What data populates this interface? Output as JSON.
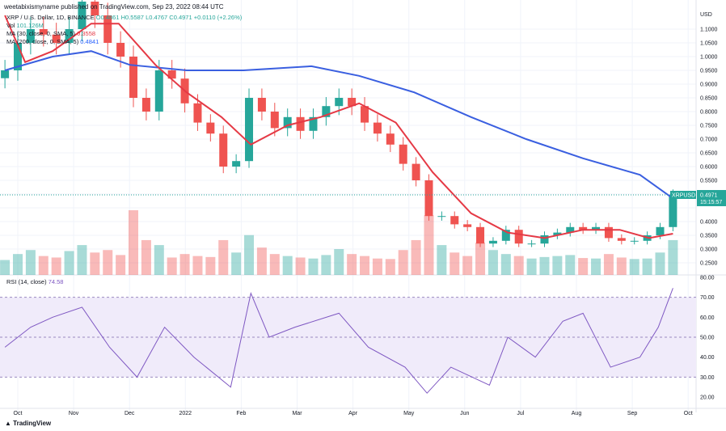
{
  "header": {
    "published": "weetabixismyname published on TradingView.com, Sep 23, 2022 08:44 UTC"
  },
  "legend": {
    "symbol": "XRP / U.S. Dollar, 1D, BINANCE",
    "o": "O0.4861",
    "h": "H0.5587",
    "l": "L0.4767",
    "c": "C0.4971",
    "change": "+0.0110 (+2.26%)",
    "vol_label": "Vol",
    "vol_value": "101.126M",
    "ma30_label": "MA (30, close, 0, SMA, 5)",
    "ma30_value": "0.3558",
    "ma200_label": "MA (200, close, 0, SMA, 5)",
    "ma200_value": "0.4841",
    "rsi_label": "RSI (14, close)",
    "rsi_value": "74.58"
  },
  "price_tag": {
    "symbol": "XRPUSD",
    "price": "0.4971",
    "countdown": "15:15:57"
  },
  "axis_currency": "USD",
  "footer": {
    "brand": "TradingView"
  },
  "colors": {
    "up": "#26a69a",
    "down": "#ef5350",
    "ma30": "#e53945",
    "ma200": "#3a5fe0",
    "rsi": "#7e57c2",
    "rsi_band": "#f0ebfa"
  },
  "chart_data": {
    "type": "candlestick",
    "interval_shown": "weekly approximation of daily chart",
    "x_ticks": [
      "Oct",
      "Nov",
      "Dec",
      "2022",
      "Feb",
      "Mar",
      "Apr",
      "May",
      "Jun",
      "Jul",
      "Aug",
      "Sep",
      "Oct"
    ],
    "y_ticks": [
      "1.1000",
      "1.0500",
      "1.0000",
      "0.9500",
      "0.9000",
      "0.8500",
      "0.8000",
      "0.7500",
      "0.7000",
      "0.6500",
      "0.6000",
      "0.5500",
      "0.5000",
      "0.4500",
      "0.4000",
      "0.3500",
      "0.3000",
      "0.2500"
    ],
    "ylim": [
      0.25,
      1.15
    ],
    "start_date": "2021-09-24",
    "closes": [
      0.95,
      1.05,
      1.1,
      1.08,
      1.05,
      1.1,
      1.2,
      1.15,
      1.05,
      1.0,
      0.85,
      0.8,
      0.95,
      0.92,
      0.83,
      0.76,
      0.72,
      0.6,
      0.62,
      0.85,
      0.8,
      0.74,
      0.78,
      0.73,
      0.78,
      0.82,
      0.85,
      0.82,
      0.76,
      0.72,
      0.68,
      0.61,
      0.55,
      0.42,
      0.42,
      0.39,
      0.38,
      0.32,
      0.33,
      0.37,
      0.32,
      0.32,
      0.35,
      0.36,
      0.38,
      0.37,
      0.38,
      0.34,
      0.33,
      0.33,
      0.35,
      0.38,
      0.4971
    ],
    "volume_m": [
      300,
      420,
      500,
      380,
      350,
      480,
      600,
      450,
      500,
      400,
      1300,
      700,
      600,
      350,
      420,
      380,
      360,
      700,
      450,
      800,
      550,
      420,
      380,
      350,
      330,
      400,
      520,
      420,
      380,
      330,
      320,
      500,
      700,
      1200,
      600,
      450,
      380,
      650,
      500,
      420,
      380,
      330,
      360,
      380,
      400,
      340,
      330,
      420,
      350,
      320,
      330,
      450,
      700
    ],
    "ma30": [
      [
        "2021-09-24",
        1.15
      ],
      [
        "2021-10-05",
        0.98
      ],
      [
        "2021-10-20",
        1.02
      ],
      [
        "2021-11-10",
        1.12
      ],
      [
        "2021-11-25",
        1.12
      ],
      [
        "2021-12-15",
        0.97
      ],
      [
        "2022-01-01",
        0.87
      ],
      [
        "2022-01-20",
        0.78
      ],
      [
        "2022-02-05",
        0.68
      ],
      [
        "2022-02-25",
        0.75
      ],
      [
        "2022-03-15",
        0.78
      ],
      [
        "2022-04-05",
        0.83
      ],
      [
        "2022-04-25",
        0.76
      ],
      [
        "2022-05-15",
        0.58
      ],
      [
        "2022-06-05",
        0.43
      ],
      [
        "2022-06-25",
        0.36
      ],
      [
        "2022-07-15",
        0.34
      ],
      [
        "2022-08-05",
        0.37
      ],
      [
        "2022-08-25",
        0.37
      ],
      [
        "2022-09-10",
        0.34
      ],
      [
        "2022-09-23",
        0.3558
      ]
    ],
    "ma200": [
      [
        "2021-09-24",
        0.95
      ],
      [
        "2021-10-20",
        1.0
      ],
      [
        "2021-11-10",
        1.02
      ],
      [
        "2021-12-01",
        0.97
      ],
      [
        "2022-01-01",
        0.95
      ],
      [
        "2022-02-01",
        0.95
      ],
      [
        "2022-03-10",
        0.965
      ],
      [
        "2022-04-05",
        0.93
      ],
      [
        "2022-05-05",
        0.87
      ],
      [
        "2022-06-05",
        0.78
      ],
      [
        "2022-07-05",
        0.7
      ],
      [
        "2022-08-05",
        0.63
      ],
      [
        "2022-09-05",
        0.57
      ],
      [
        "2022-09-23",
        0.4841
      ]
    ],
    "rsi": {
      "y_ticks": [
        "80.00",
        "70.00",
        "60.00",
        "50.00",
        "40.00",
        "30.00",
        "20.00"
      ],
      "bands": [
        30,
        70
      ],
      "points": [
        [
          "2021-09-24",
          45
        ],
        [
          "2021-10-08",
          55
        ],
        [
          "2021-10-20",
          60
        ],
        [
          "2021-11-05",
          65
        ],
        [
          "2021-11-20",
          45
        ],
        [
          "2021-12-05",
          30
        ],
        [
          "2021-12-20",
          55
        ],
        [
          "2022-01-05",
          40
        ],
        [
          "2022-01-25",
          25
        ],
        [
          "2022-02-05",
          72
        ],
        [
          "2022-02-15",
          50
        ],
        [
          "2022-03-01",
          55
        ],
        [
          "2022-03-25",
          62
        ],
        [
          "2022-04-10",
          45
        ],
        [
          "2022-04-30",
          35
        ],
        [
          "2022-05-12",
          22
        ],
        [
          "2022-05-25",
          35
        ],
        [
          "2022-06-15",
          26
        ],
        [
          "2022-06-25",
          50
        ],
        [
          "2022-07-10",
          40
        ],
        [
          "2022-07-25",
          58
        ],
        [
          "2022-08-05",
          62
        ],
        [
          "2022-08-20",
          35
        ],
        [
          "2022-09-05",
          40
        ],
        [
          "2022-09-15",
          55
        ],
        [
          "2022-09-23",
          74.58
        ]
      ]
    }
  }
}
